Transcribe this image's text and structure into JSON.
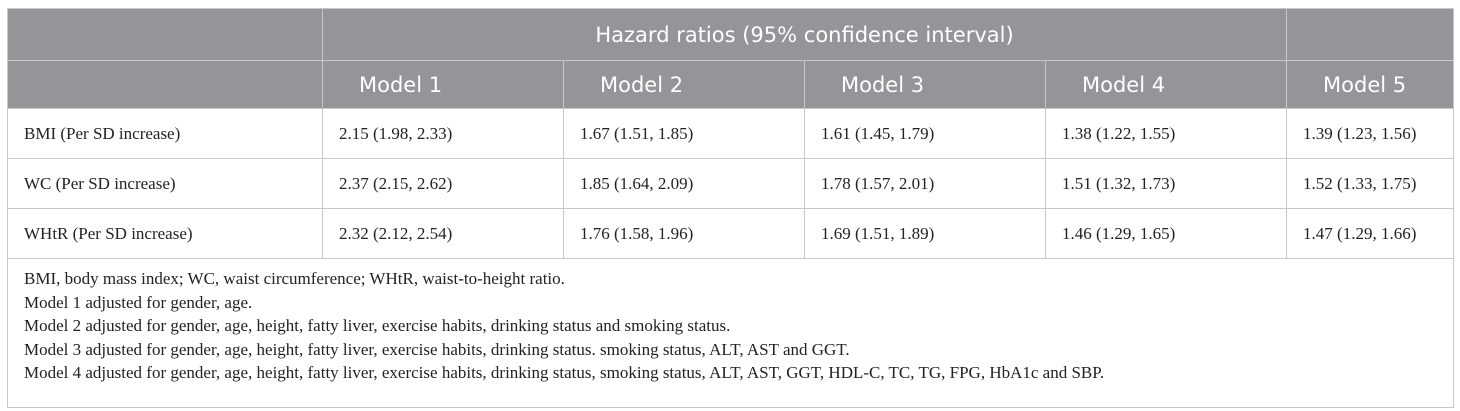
{
  "table": {
    "header": {
      "group": "Hazard ratios (95% confidence interval)"
    },
    "columns": [
      "Model 1",
      "Model 2",
      "Model 3",
      "Model 4",
      "Model 5"
    ],
    "rows": [
      [
        "BMI (Per SD increase)",
        "2.15 (1.98, 2.33)",
        "1.67 (1.51, 1.85)",
        "1.61 (1.45, 1.79)",
        "1.38 (1.22, 1.55)",
        "1.39 (1.23, 1.56)"
      ],
      [
        "WC (Per SD increase)",
        "2.37 (2.15, 2.62)",
        "1.85 (1.64, 2.09)",
        "1.78 (1.57, 2.01)",
        "1.51 (1.32, 1.73)",
        "1.52 (1.33, 1.75)"
      ],
      [
        "WHtR (Per SD increase)",
        "2.32 (2.12, 2.54)",
        "1.76 (1.58, 1.96)",
        "1.69 (1.51, 1.89)",
        "1.46 (1.29, 1.65)",
        "1.47 (1.29, 1.66)"
      ]
    ],
    "footnotes": [
      "BMI, body mass index; WC, waist circumference; WHtR, waist-to-height ratio.",
      "Model 1 adjusted for gender, age.",
      "Model 2 adjusted for gender, age, height, fatty liver, exercise habits, drinking status and smoking status.",
      "Model 3 adjusted for gender, age, height, fatty liver, exercise habits, drinking status. smoking status, ALT, AST and GGT.",
      "Model 4 adjusted for gender, age, height, fatty liver, exercise habits, drinking status, smoking status, ALT, AST, GGT, HDL-C, TC, TG, FPG, HbA1c and SBP."
    ]
  }
}
